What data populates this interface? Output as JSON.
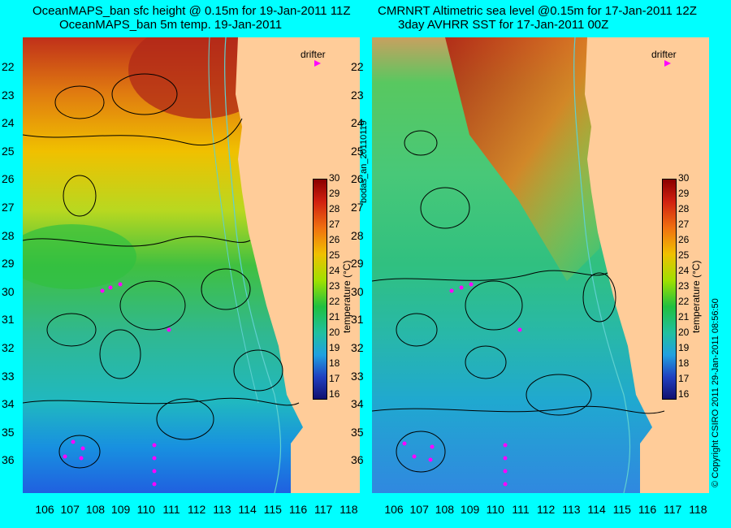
{
  "left": {
    "title1": "OceanMAPS_ban sfc height @ 0.15m for 19-Jan-2011 11Z",
    "title2": "OceanMAPS_ban 5m temp. 19-Jan-2011"
  },
  "right": {
    "title1": "CMRNRT Altimetric sea level  @0.15m  for 17-Jan-2011 12Z",
    "title2": "3day AVHRR SST for 17-Jan-2011 00Z"
  },
  "legend": {
    "drifter": "drifter",
    "drifter_color": "#ff00ff"
  },
  "colorbar": {
    "title": "temperature (°C)",
    "ticks": [
      "30",
      "29",
      "28",
      "27",
      "26",
      "25",
      "24",
      "23",
      "22",
      "21",
      "20",
      "19",
      "18",
      "17",
      "16"
    ]
  },
  "y_ticks": [
    "22",
    "23",
    "24",
    "25",
    "26",
    "27",
    "28",
    "29",
    "30",
    "31",
    "32",
    "33",
    "34",
    "35",
    "36"
  ],
  "x_ticks": [
    "106",
    "107",
    "108",
    "109",
    "110",
    "111",
    "112",
    "113",
    "114",
    "115",
    "116",
    "117",
    "118"
  ],
  "side_left": "bodas_an_20110119",
  "side_right": "© Copyright CSIRO 2011   29-Jan-2011 08:56:50",
  "colors": {
    "background": "#00ffff",
    "land": "#ffcc99",
    "contour": "#000000",
    "isobath": "#5fd0d0"
  }
}
